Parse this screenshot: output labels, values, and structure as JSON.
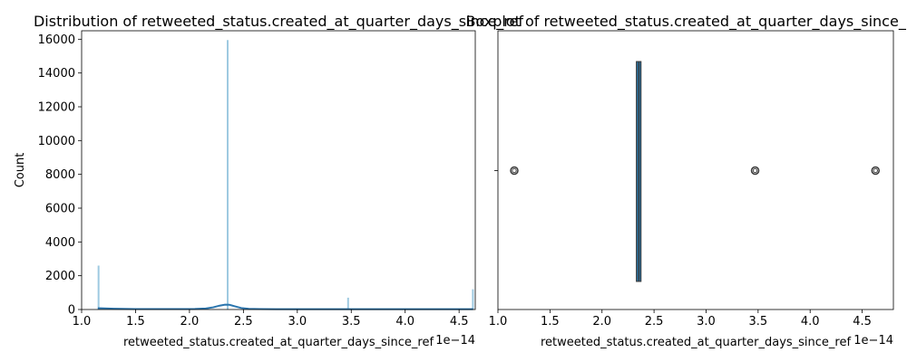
{
  "chart_data": [
    {
      "type": "histogram",
      "title": "Distribution of retweeted_status.created_at_quarter_days_since_ref",
      "xlabel": "retweeted_status.created_at_quarter_days_since_ref",
      "ylabel": "Count",
      "x_offset_text": "1e−14",
      "xlim": [
        1.0,
        4.65
      ],
      "ylim": [
        0,
        16500
      ],
      "x_ticks": [
        1.0,
        1.5,
        2.0,
        2.5,
        3.0,
        3.5,
        4.0,
        4.5
      ],
      "x_tick_labels": [
        "1.0",
        "1.5",
        "2.0",
        "2.5",
        "3.0",
        "3.5",
        "4.0",
        "4.5"
      ],
      "y_ticks": [
        0,
        2000,
        4000,
        6000,
        8000,
        10000,
        12000,
        14000,
        16000
      ],
      "y_tick_labels": [
        "0",
        "2000",
        "4000",
        "6000",
        "8000",
        "10000",
        "12000",
        "14000",
        "16000"
      ],
      "bars": [
        {
          "x": 1.157,
          "count": 2600
        },
        {
          "x": 2.354,
          "count": 15950
        },
        {
          "x": 3.471,
          "count": 700
        },
        {
          "x": 4.628,
          "count": 1200
        }
      ],
      "kde": {
        "x": [
          1.15,
          1.3,
          1.5,
          1.7,
          1.9,
          2.05,
          2.15,
          2.22,
          2.28,
          2.33,
          2.37,
          2.42,
          2.48,
          2.55,
          2.65,
          2.8,
          3.0,
          3.3,
          3.6,
          3.9,
          4.2,
          4.5,
          4.63
        ],
        "y": [
          80,
          50,
          30,
          25,
          25,
          35,
          60,
          130,
          230,
          290,
          280,
          190,
          90,
          40,
          25,
          22,
          22,
          22,
          22,
          22,
          22,
          22,
          22
        ]
      },
      "bar_color": "#8ec1dc",
      "line_color": "#2a75ae"
    },
    {
      "type": "boxplot",
      "title": "Boxplot of retweeted_status.created_at_quarter_days_since_ref",
      "xlabel": "retweeted_status.created_at_quarter_days_since_ref",
      "x_offset_text": "1e−14",
      "xlim": [
        1.0,
        4.8
      ],
      "x_ticks": [
        1.0,
        1.5,
        2.0,
        2.5,
        3.0,
        3.5,
        4.0,
        4.5
      ],
      "x_tick_labels": [
        "1.0",
        "1.5",
        "2.0",
        "2.5",
        "3.0",
        "3.5",
        "4.0",
        "4.5"
      ],
      "box": {
        "q1": 2.33,
        "median": 2.354,
        "q3": 2.375,
        "whisker_low": 2.33,
        "whisker_high": 2.375
      },
      "outliers": [
        1.157,
        3.471,
        4.628
      ],
      "box_color": "#2a6b96"
    }
  ]
}
